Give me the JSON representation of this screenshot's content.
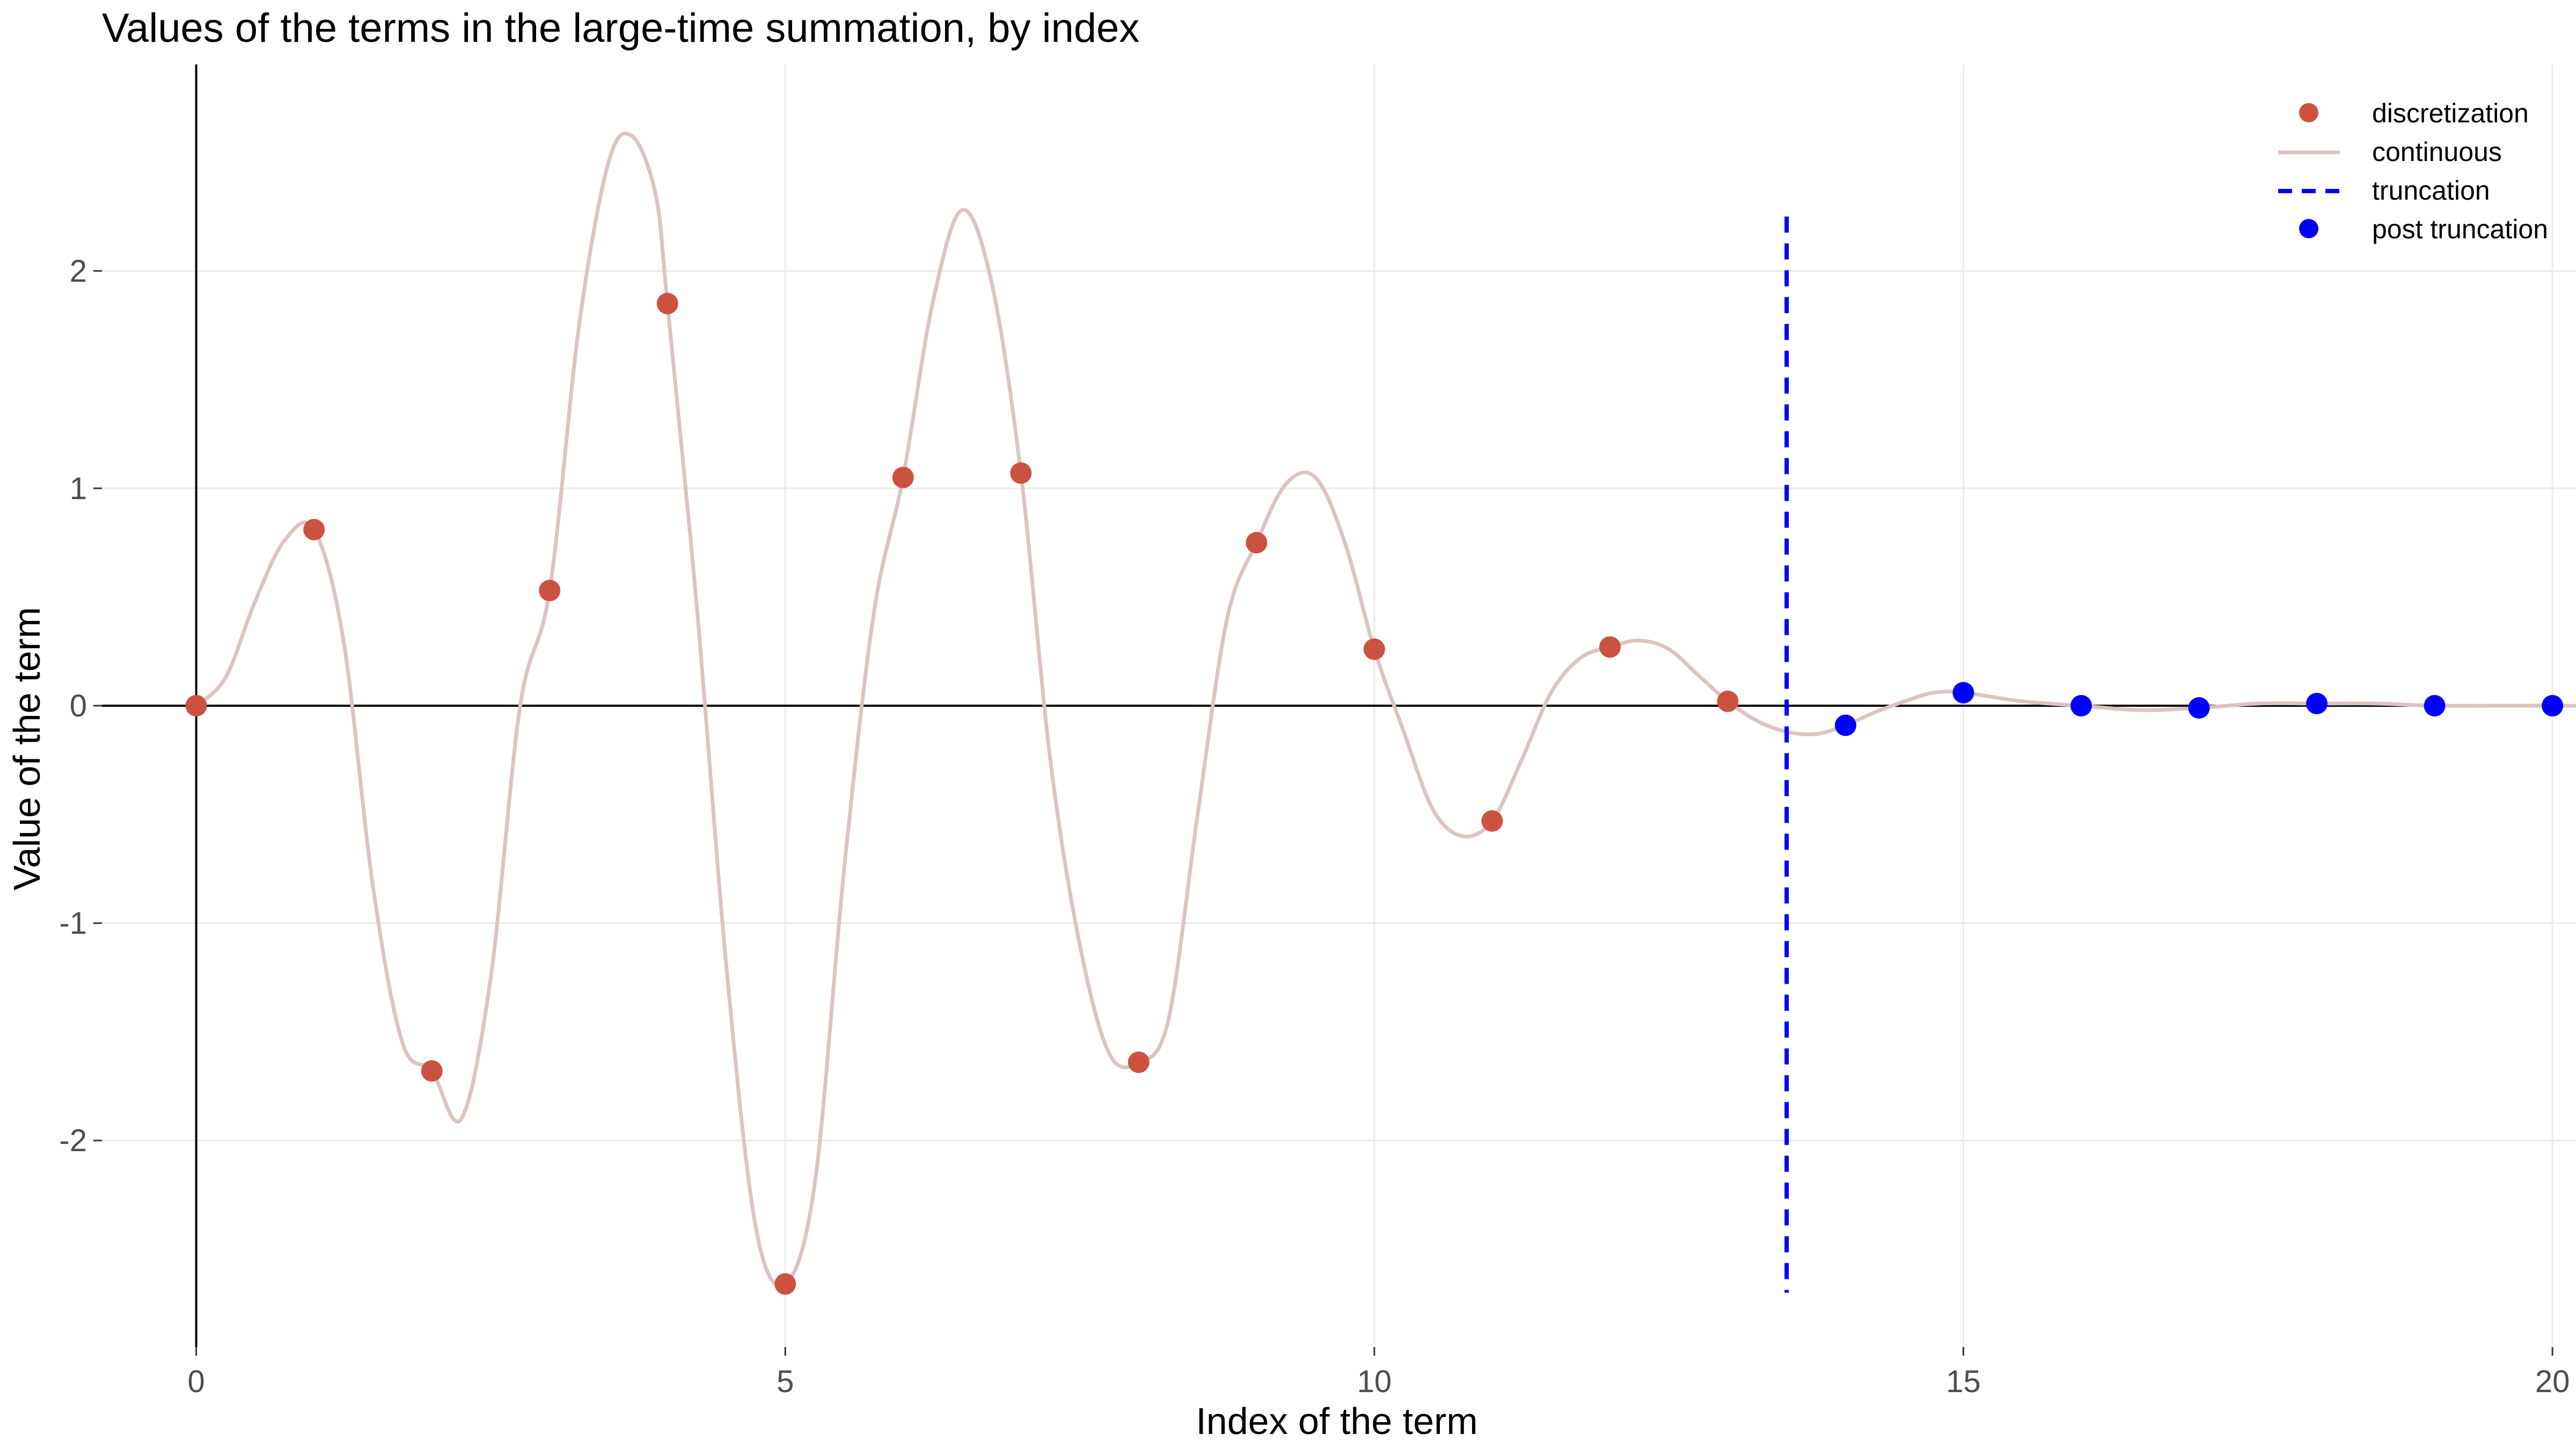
{
  "chart_data": {
    "type": "scatter",
    "title": "Values of the terms in the large-time summation, by index",
    "xlabel": "Index of the term",
    "ylabel": "Value of the term",
    "xlim": [
      -0.8,
      20.2
    ],
    "ylim": [
      -2.95,
      2.95
    ],
    "x_ticks": [
      0,
      5,
      10,
      15,
      20
    ],
    "y_ticks": [
      -2,
      -1,
      0,
      1,
      2
    ],
    "x_tick_labels": [
      "0",
      "5",
      "10",
      "15",
      "20"
    ],
    "y_tick_labels": [
      "-2",
      "-1",
      "0",
      "1",
      "2"
    ],
    "grid": true,
    "legend_position": "top-right",
    "legend": [
      {
        "label": "discretization",
        "kind": "point",
        "color": "#cc5240"
      },
      {
        "label": "continuous",
        "kind": "line",
        "color": "#dbc4c0"
      },
      {
        "label": "truncation",
        "kind": "dashed-line",
        "color": "#0000ff"
      },
      {
        "label": "post truncation",
        "kind": "point",
        "color": "#0000ff"
      }
    ],
    "series": [
      {
        "name": "discretization",
        "color": "#cc5240",
        "x": [
          0,
          1,
          2,
          3,
          4,
          5,
          6,
          7,
          8,
          9,
          10,
          11,
          12,
          13
        ],
        "y": [
          0,
          0.81,
          -1.68,
          0.53,
          1.85,
          -2.66,
          1.05,
          1.07,
          -1.64,
          0.75,
          0.26,
          -0.53,
          0.27,
          0.02
        ]
      },
      {
        "name": "post truncation",
        "color": "#0000ff",
        "x": [
          14,
          15,
          16,
          17,
          18,
          19,
          20
        ],
        "y": [
          -0.09,
          0.06,
          0.0,
          -0.01,
          0.01,
          0.0,
          0.0
        ]
      },
      {
        "name": "continuous",
        "color": "#dbc4c0",
        "x": [
          0,
          0.25,
          0.5,
          0.75,
          1.0,
          1.25,
          1.5,
          1.75,
          2.0,
          2.25,
          2.5,
          2.75,
          3.0,
          3.25,
          3.5,
          3.7,
          3.9,
          4.0,
          4.25,
          4.5,
          4.75,
          5.0,
          5.25,
          5.5,
          5.75,
          6.0,
          6.25,
          6.5,
          6.75,
          7.0,
          7.25,
          7.5,
          7.75,
          8.0,
          8.25,
          8.5,
          8.75,
          9.0,
          9.25,
          9.5,
          9.75,
          10.0,
          10.25,
          10.5,
          10.75,
          11.0,
          11.25,
          11.5,
          11.75,
          12.0,
          12.25,
          12.5,
          12.75,
          13.0,
          13.25,
          13.5,
          13.75,
          14.0,
          14.25,
          14.5,
          14.75,
          15.0,
          15.5,
          16.0,
          16.5,
          17.0,
          17.5,
          18.0,
          18.5,
          19.0,
          19.5,
          20.0,
          20.2
        ],
        "y": [
          0,
          0.13,
          0.48,
          0.76,
          0.81,
          0.3,
          -0.83,
          -1.55,
          -1.68,
          -1.9,
          -1.25,
          0.0,
          0.53,
          1.75,
          2.5,
          2.62,
          2.35,
          1.85,
          0.45,
          -1.2,
          -2.4,
          -2.66,
          -2.2,
          -0.75,
          0.42,
          1.05,
          1.85,
          2.28,
          1.95,
          1.07,
          -0.25,
          -1.1,
          -1.6,
          -1.64,
          -1.45,
          -0.5,
          0.4,
          0.75,
          1.02,
          1.05,
          0.75,
          0.26,
          -0.12,
          -0.48,
          -0.6,
          -0.53,
          -0.25,
          0.06,
          0.22,
          0.27,
          0.3,
          0.26,
          0.14,
          0.02,
          -0.07,
          -0.12,
          -0.13,
          -0.09,
          -0.03,
          0.02,
          0.06,
          0.06,
          0.02,
          0.0,
          -0.02,
          -0.01,
          0.01,
          0.01,
          0.01,
          0.0,
          0.0,
          0.0,
          0.0
        ]
      }
    ],
    "reference_lines": [
      {
        "name": "truncation",
        "orientation": "vertical",
        "x": 13.5,
        "y_range": [
          -2.7,
          2.25
        ],
        "color": "#0000ff",
        "style": "dashed"
      },
      {
        "name": "x-axis",
        "orientation": "horizontal",
        "y": 0,
        "color": "#000000"
      },
      {
        "name": "y-axis",
        "orientation": "vertical",
        "x": 0,
        "color": "#000000"
      }
    ]
  }
}
